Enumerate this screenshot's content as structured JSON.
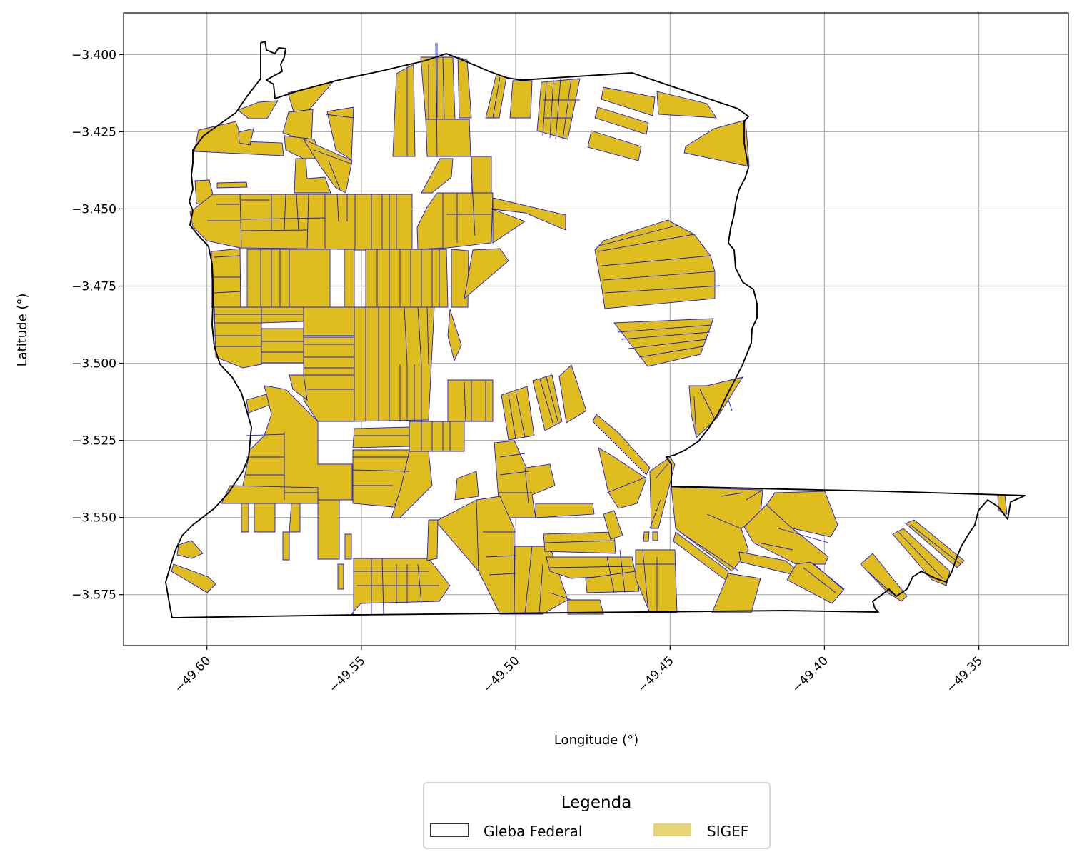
{
  "chart_data": {
    "type": "map",
    "xlabel": "Longitude (°)",
    "ylabel": "Latitude (°)",
    "xlim": [
      -49.627,
      -49.321
    ],
    "ylim": [
      -3.5915,
      -3.3865
    ],
    "xticks": [
      -49.6,
      -49.55,
      -49.5,
      -49.45,
      -49.4,
      -49.35
    ],
    "xtick_labels": [
      "−49.60",
      "−49.55",
      "−49.50",
      "−49.45",
      "−49.40",
      "−49.35"
    ],
    "yticks": [
      -3.4,
      -3.425,
      -3.45,
      -3.475,
      -3.5,
      -3.525,
      -3.55,
      -3.575
    ],
    "ytick_labels": [
      "−3.400",
      "−3.425",
      "−3.450",
      "−3.475",
      "−3.500",
      "−3.525",
      "−3.550",
      "−3.575"
    ],
    "grid": true,
    "legend": {
      "title": "Legenda",
      "placement": "bottom-center, below axes",
      "entries": [
        {
          "label": "Gleba Federal",
          "style": "outline",
          "color": "#000000"
        },
        {
          "label": "SIGEF",
          "style": "filled",
          "color": "#e6d476"
        }
      ]
    },
    "colors": {
      "parcel_fill": "#dfbd1f",
      "parcel_edge": "#1a1aee",
      "boundary": "#000000",
      "grid": "#b0b0b0"
    }
  }
}
